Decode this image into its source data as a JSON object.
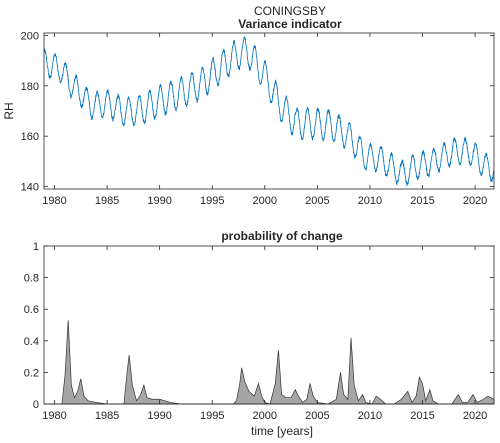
{
  "figure": {
    "title": "CONINGSBY"
  },
  "chart_data": [
    {
      "type": "line",
      "title": "Variance indicator",
      "xlabel": "",
      "ylabel": "RH",
      "xlim": [
        1979,
        2021.8
      ],
      "ylim": [
        139,
        201
      ],
      "xticks": [
        1980,
        1985,
        1990,
        1995,
        2000,
        2005,
        2010,
        2015,
        2020
      ],
      "yticks": [
        140,
        160,
        180,
        200
      ],
      "line_color": "#0072BD",
      "seasonal_period_years": 1,
      "series": [
        {
          "seasonal_amplitude": [
            [
              1979.0,
              5
            ],
            [
              1985.0,
              5
            ],
            [
              1990.0,
              6
            ],
            [
              1995.0,
              6
            ],
            [
              2000.0,
              6
            ],
            [
              2005.0,
              6
            ],
            [
              2010.0,
              5
            ],
            [
              2015.0,
              5
            ],
            [
              2021.8,
              5
            ]
          ],
          "trend": [
            [
              1979.0,
              189
            ],
            [
              1980.5,
              187
            ],
            [
              1981.5,
              181
            ],
            [
              1982.5,
              177
            ],
            [
              1983.5,
              172
            ],
            [
              1985.0,
              173
            ],
            [
              1986.5,
              170
            ],
            [
              1988.0,
              170
            ],
            [
              1990.0,
              174
            ],
            [
              1992.0,
              177
            ],
            [
              1994.0,
              181
            ],
            [
              1996.0,
              188
            ],
            [
              1997.5,
              193
            ],
            [
              1998.5,
              193
            ],
            [
              2000.0,
              184
            ],
            [
              2001.5,
              172
            ],
            [
              2003.0,
              165
            ],
            [
              2005.0,
              165
            ],
            [
              2006.5,
              164
            ],
            [
              2008.0,
              160
            ],
            [
              2009.5,
              152
            ],
            [
              2011.0,
              151
            ],
            [
              2013.0,
              145
            ],
            [
              2014.5,
              148
            ],
            [
              2016.0,
              150
            ],
            [
              2018.0,
              154
            ],
            [
              2019.5,
              154
            ],
            [
              2021.0,
              148
            ],
            [
              2021.8,
              147
            ]
          ]
        }
      ]
    },
    {
      "type": "area",
      "title": "probability of change",
      "xlabel": "time [years]",
      "ylabel": "",
      "xlim": [
        1979,
        2021.8
      ],
      "ylim": [
        0,
        1
      ],
      "xticks": [
        1980,
        1985,
        1990,
        1995,
        2000,
        2005,
        2010,
        2015,
        2020
      ],
      "yticks": [
        0,
        0.2,
        0.4,
        0.6,
        0.8,
        1
      ],
      "fill_color": "#a6a6a6",
      "series": [
        {
          "points": [
            [
              1979.0,
              0.0
            ],
            [
              1980.7,
              0.0
            ],
            [
              1981.0,
              0.18
            ],
            [
              1981.3,
              0.53
            ],
            [
              1981.6,
              0.12
            ],
            [
              1981.9,
              0.04
            ],
            [
              1982.2,
              0.08
            ],
            [
              1982.5,
              0.16
            ],
            [
              1982.8,
              0.05
            ],
            [
              1983.2,
              0.02
            ],
            [
              1984.0,
              0.01
            ],
            [
              1985.0,
              0.0
            ],
            [
              1986.6,
              0.0
            ],
            [
              1986.9,
              0.2
            ],
            [
              1987.1,
              0.31
            ],
            [
              1987.4,
              0.12
            ],
            [
              1987.8,
              0.02
            ],
            [
              1988.2,
              0.06
            ],
            [
              1988.5,
              0.12
            ],
            [
              1988.8,
              0.04
            ],
            [
              1989.3,
              0.03
            ],
            [
              1990.0,
              0.03
            ],
            [
              1991.0,
              0.01
            ],
            [
              1992.0,
              0.0
            ],
            [
              1997.0,
              0.0
            ],
            [
              1997.3,
              0.02
            ],
            [
              1997.6,
              0.12
            ],
            [
              1997.8,
              0.23
            ],
            [
              1998.1,
              0.14
            ],
            [
              1998.5,
              0.08
            ],
            [
              1999.0,
              0.05
            ],
            [
              1999.4,
              0.13
            ],
            [
              1999.7,
              0.05
            ],
            [
              2000.0,
              0.01
            ],
            [
              2000.5,
              0.0
            ],
            [
              2001.0,
              0.13
            ],
            [
              2001.3,
              0.34
            ],
            [
              2001.6,
              0.06
            ],
            [
              2002.0,
              0.04
            ],
            [
              2002.5,
              0.04
            ],
            [
              2002.9,
              0.09
            ],
            [
              2003.2,
              0.05
            ],
            [
              2003.6,
              0.01
            ],
            [
              2004.0,
              0.03
            ],
            [
              2004.3,
              0.13
            ],
            [
              2004.6,
              0.05
            ],
            [
              2005.0,
              0.01
            ],
            [
              2006.0,
              0.0
            ],
            [
              2006.8,
              0.03
            ],
            [
              2007.2,
              0.2
            ],
            [
              2007.5,
              0.06
            ],
            [
              2007.9,
              0.03
            ],
            [
              2008.2,
              0.42
            ],
            [
              2008.5,
              0.12
            ],
            [
              2008.9,
              0.02
            ],
            [
              2009.3,
              0.06
            ],
            [
              2009.6,
              0.01
            ],
            [
              2010.2,
              0.0
            ],
            [
              2010.6,
              0.05
            ],
            [
              2011.0,
              0.03
            ],
            [
              2011.5,
              0.0
            ],
            [
              2012.3,
              0.0
            ],
            [
              2013.0,
              0.03
            ],
            [
              2013.6,
              0.08
            ],
            [
              2014.0,
              0.01
            ],
            [
              2014.4,
              0.05
            ],
            [
              2014.7,
              0.17
            ],
            [
              2015.0,
              0.13
            ],
            [
              2015.3,
              0.02
            ],
            [
              2015.7,
              0.09
            ],
            [
              2016.0,
              0.02
            ],
            [
              2016.5,
              0.0
            ],
            [
              2017.8,
              0.0
            ],
            [
              2018.4,
              0.06
            ],
            [
              2018.8,
              0.01
            ],
            [
              2019.3,
              0.01
            ],
            [
              2019.8,
              0.06
            ],
            [
              2020.2,
              0.01
            ],
            [
              2020.8,
              0.03
            ],
            [
              2021.2,
              0.05
            ],
            [
              2021.8,
              0.03
            ]
          ]
        }
      ]
    }
  ]
}
